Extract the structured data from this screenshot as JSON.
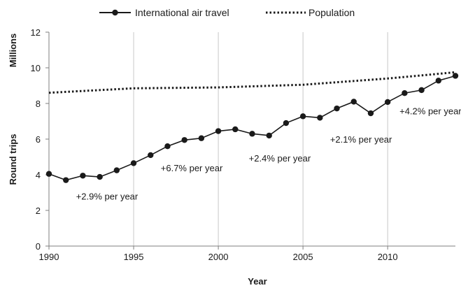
{
  "chart_data": {
    "type": "line",
    "title": "",
    "xlabel": "Year",
    "ylabel": "Round trips",
    "ylabel_unit": "Millions",
    "xlim": [
      1990,
      2014
    ],
    "ylim": [
      0,
      12
    ],
    "xticks": [
      "1990",
      "1995",
      "2000",
      "2005",
      "2010"
    ],
    "yticks": [
      "0",
      "2",
      "4",
      "6",
      "8",
      "10",
      "12"
    ],
    "grid": "vertical",
    "legend_position": "top",
    "x": [
      1990,
      1991,
      1992,
      1993,
      1994,
      1995,
      1996,
      1997,
      1998,
      1999,
      2000,
      2001,
      2002,
      2003,
      2004,
      2005,
      2006,
      2007,
      2008,
      2009,
      2010,
      2011,
      2012,
      2013,
      2014
    ],
    "series": [
      {
        "name": "International air travel",
        "style": "solid-with-markers",
        "values": [
          4.05,
          3.7,
          3.95,
          3.88,
          4.25,
          4.65,
          5.1,
          5.6,
          5.95,
          6.05,
          6.45,
          6.55,
          6.3,
          6.2,
          6.9,
          7.28,
          7.2,
          7.72,
          8.1,
          7.45,
          8.08,
          8.58,
          8.75,
          9.28,
          9.55
        ]
      },
      {
        "name": "Population",
        "style": "dotted",
        "x": [
          1990,
          1995,
          2000,
          2005,
          2010,
          2014
        ],
        "values": [
          8.6,
          8.85,
          8.9,
          9.05,
          9.4,
          9.75
        ]
      }
    ],
    "annotations": [
      {
        "text": "+2.9% per year",
        "x": 1991.6,
        "y": 2.6
      },
      {
        "text": "+6.7% per year",
        "x": 1996.6,
        "y": 4.2
      },
      {
        "text": "+2.4% per year",
        "x": 2001.8,
        "y": 4.75
      },
      {
        "text": "+2.1% per year",
        "x": 2006.6,
        "y": 5.8
      },
      {
        "text": "+4.2% per year",
        "x": 2010.7,
        "y": 7.4
      }
    ],
    "colors": {
      "line": "#1a1a1a",
      "grid": "#c8c8c8",
      "axis": "#7f7f7f"
    }
  }
}
